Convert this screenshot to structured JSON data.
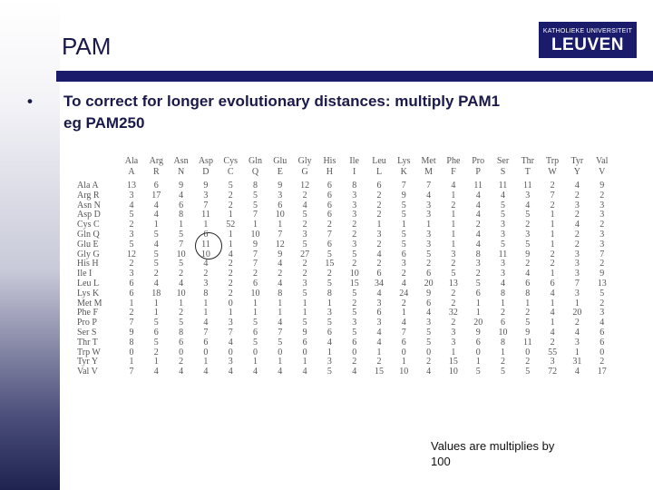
{
  "slide": {
    "title": "PAM",
    "logo_top": "KATHOLIEKE UNIVERSITEIT",
    "logo_main": "LEUVEN",
    "bullet_symbol": "•",
    "bullet_line1": "To correct for longer evolutionary distances: multiply PAM1",
    "bullet_line2": "eg PAM250",
    "note_line1": "Values are multiplies by",
    "note_line2": "100"
  },
  "matrix": {
    "col_names": [
      "Ala",
      "Arg",
      "Asn",
      "Asp",
      "Cys",
      "Gln",
      "Glu",
      "Gly",
      "His",
      "Ile",
      "Leu",
      "Lys",
      "Met",
      "Phe",
      "Pro",
      "Ser",
      "Thr",
      "Trp",
      "Tyr",
      "Val"
    ],
    "col_codes": [
      "A",
      "R",
      "N",
      "D",
      "C",
      "Q",
      "E",
      "G",
      "H",
      "I",
      "L",
      "K",
      "M",
      "F",
      "P",
      "S",
      "T",
      "W",
      "Y",
      "V"
    ],
    "rows": [
      {
        "label": "Ala A",
        "values": [
          "13",
          "6",
          "9",
          "9",
          "5",
          "8",
          "9",
          "12",
          "6",
          "8",
          "6",
          "7",
          "7",
          "4",
          "11",
          "11",
          "11",
          "2",
          "4",
          "9"
        ]
      },
      {
        "label": "Arg R",
        "values": [
          "3",
          "17",
          "4",
          "3",
          "2",
          "5",
          "3",
          "2",
          "6",
          "3",
          "2",
          "9",
          "4",
          "1",
          "4",
          "4",
          "3",
          "7",
          "2",
          "2"
        ]
      },
      {
        "label": "Asn N",
        "values": [
          "4",
          "4",
          "6",
          "7",
          "2",
          "5",
          "6",
          "4",
          "6",
          "3",
          "2",
          "5",
          "3",
          "2",
          "4",
          "5",
          "4",
          "2",
          "3",
          "3"
        ]
      },
      {
        "label": "Asp D",
        "values": [
          "5",
          "4",
          "8",
          "11",
          "1",
          "7",
          "10",
          "5",
          "6",
          "3",
          "2",
          "5",
          "3",
          "1",
          "4",
          "5",
          "5",
          "1",
          "2",
          "3"
        ]
      },
      {
        "label": "Cys C",
        "values": [
          "2",
          "1",
          "1",
          "1",
          "52",
          "1",
          "1",
          "2",
          "2",
          "2",
          "1",
          "1",
          "1",
          "1",
          "2",
          "3",
          "2",
          "1",
          "4",
          "2"
        ]
      },
      {
        "label": "Gln Q",
        "values": [
          "3",
          "5",
          "5",
          "6",
          "1",
          "10",
          "7",
          "3",
          "7",
          "2",
          "3",
          "5",
          "3",
          "1",
          "4",
          "3",
          "3",
          "1",
          "2",
          "3"
        ]
      },
      {
        "label": "Glu E",
        "values": [
          "5",
          "4",
          "7",
          "11",
          "1",
          "9",
          "12",
          "5",
          "6",
          "3",
          "2",
          "5",
          "3",
          "1",
          "4",
          "5",
          "5",
          "1",
          "2",
          "3"
        ]
      },
      {
        "label": "Gly G",
        "values": [
          "12",
          "5",
          "10",
          "10",
          "4",
          "7",
          "9",
          "27",
          "5",
          "5",
          "4",
          "6",
          "5",
          "3",
          "8",
          "11",
          "9",
          "2",
          "3",
          "7"
        ]
      },
      {
        "label": "His H",
        "values": [
          "2",
          "5",
          "5",
          "4",
          "2",
          "7",
          "4",
          "2",
          "15",
          "2",
          "2",
          "3",
          "2",
          "2",
          "3",
          "3",
          "2",
          "2",
          "3",
          "2"
        ]
      },
      {
        "label": "Ile I",
        "values": [
          "3",
          "2",
          "2",
          "2",
          "2",
          "2",
          "2",
          "2",
          "2",
          "10",
          "6",
          "2",
          "6",
          "5",
          "2",
          "3",
          "4",
          "1",
          "3",
          "9"
        ]
      },
      {
        "label": "Leu L",
        "values": [
          "6",
          "4",
          "4",
          "3",
          "2",
          "6",
          "4",
          "3",
          "5",
          "15",
          "34",
          "4",
          "20",
          "13",
          "5",
          "4",
          "6",
          "6",
          "7",
          "13"
        ]
      },
      {
        "label": "Lys K",
        "values": [
          "6",
          "18",
          "10",
          "8",
          "2",
          "10",
          "8",
          "5",
          "8",
          "5",
          "4",
          "24",
          "9",
          "2",
          "6",
          "8",
          "8",
          "4",
          "3",
          "5"
        ]
      },
      {
        "label": "Met M",
        "values": [
          "1",
          "1",
          "1",
          "1",
          "0",
          "1",
          "1",
          "1",
          "1",
          "2",
          "3",
          "2",
          "6",
          "2",
          "1",
          "1",
          "1",
          "1",
          "1",
          "2"
        ]
      },
      {
        "label": "Phe F",
        "values": [
          "2",
          "1",
          "2",
          "1",
          "1",
          "1",
          "1",
          "1",
          "3",
          "5",
          "6",
          "1",
          "4",
          "32",
          "1",
          "2",
          "2",
          "4",
          "20",
          "3"
        ]
      },
      {
        "label": "Pro P",
        "values": [
          "7",
          "5",
          "5",
          "4",
          "3",
          "5",
          "4",
          "5",
          "5",
          "3",
          "3",
          "4",
          "3",
          "2",
          "20",
          "6",
          "5",
          "1",
          "2",
          "4"
        ]
      },
      {
        "label": "Ser S",
        "values": [
          "9",
          "6",
          "8",
          "7",
          "7",
          "6",
          "7",
          "9",
          "6",
          "5",
          "4",
          "7",
          "5",
          "3",
          "9",
          "10",
          "9",
          "4",
          "4",
          "6"
        ]
      },
      {
        "label": "Thr T",
        "values": [
          "8",
          "5",
          "6",
          "6",
          "4",
          "5",
          "5",
          "6",
          "4",
          "6",
          "4",
          "6",
          "5",
          "3",
          "6",
          "8",
          "11",
          "2",
          "3",
          "6"
        ]
      },
      {
        "label": "Trp W",
        "values": [
          "0",
          "2",
          "0",
          "0",
          "0",
          "0",
          "0",
          "0",
          "1",
          "0",
          "1",
          "0",
          "0",
          "1",
          "0",
          "1",
          "0",
          "55",
          "1",
          "0"
        ]
      },
      {
        "label": "Tyr Y",
        "values": [
          "1",
          "1",
          "2",
          "1",
          "3",
          "1",
          "1",
          "1",
          "3",
          "2",
          "2",
          "1",
          "2",
          "15",
          "1",
          "2",
          "2",
          "3",
          "31",
          "2"
        ]
      },
      {
        "label": "Val V",
        "values": [
          "7",
          "4",
          "4",
          "4",
          "4",
          "4",
          "4",
          "4",
          "5",
          "4",
          "15",
          "10",
          "4",
          "10",
          "5",
          "5",
          "5",
          "72",
          "4",
          "17"
        ]
      }
    ]
  }
}
